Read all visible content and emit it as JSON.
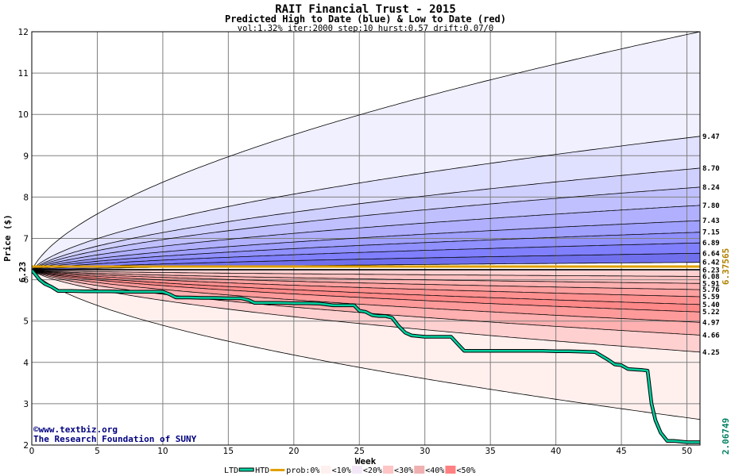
{
  "chart_data": {
    "type": "area",
    "title": "RAIT Financial Trust - 2015",
    "subtitle": "Predicted High to Date (blue) &  Low to Date (red)",
    "params": "vol:1.32% iter:2000 step:10 hurst:0.57 drift:0.07/0",
    "xlabel": "Week",
    "ylabel": "Price ($)",
    "xlim": [
      0,
      51
    ],
    "ylim": [
      2,
      12
    ],
    "x_ticks": [
      0,
      5,
      10,
      15,
      20,
      25,
      30,
      35,
      40,
      45,
      50
    ],
    "y_ticks": [
      2,
      3,
      4,
      5,
      6,
      7,
      8,
      9,
      10,
      11,
      12
    ],
    "grid": true,
    "start_price": 6.23,
    "start_label": "6.23",
    "reference_price": 6.37565,
    "reference_label": "6.37565",
    "last_price_label": "2.06749",
    "band_curves": [
      {
        "label": "",
        "end": 12.0,
        "k": 0.2505,
        "base": 6.23
      },
      {
        "label": "9.47",
        "end": 9.47,
        "k": 0.2505,
        "base": 6.23
      },
      {
        "label": "8.70",
        "end": 8.7,
        "k": 0.2505,
        "base": 6.23
      },
      {
        "label": "8.24",
        "end": 8.24,
        "k": 0.2505,
        "base": 6.23
      },
      {
        "label": "7.80",
        "end": 7.8,
        "k": 0.2505,
        "base": 6.23
      },
      {
        "label": "7.43",
        "end": 7.43,
        "k": 0.2505,
        "base": 6.23
      },
      {
        "label": "7.15",
        "end": 7.15,
        "k": 0.2505,
        "base": 6.23
      },
      {
        "label": "6.89",
        "end": 6.89,
        "k": 0.2505,
        "base": 6.23
      },
      {
        "label": "6.64",
        "end": 6.64,
        "k": 0.2505,
        "base": 6.23
      },
      {
        "label": "6.42",
        "end": 6.42,
        "k": 0.2505,
        "base": 6.23
      },
      {
        "label": "6.23",
        "end": 6.23,
        "k": 0.2505,
        "base": 6.23
      },
      {
        "label": "6.08",
        "end": 6.08,
        "k": 0.2505,
        "base": 6.23
      },
      {
        "label": "5.91",
        "end": 5.91,
        "k": 0.2505,
        "base": 6.23
      },
      {
        "label": "5.76",
        "end": 5.76,
        "k": 0.2505,
        "base": 6.23
      },
      {
        "label": "5.59",
        "end": 5.59,
        "k": 0.2505,
        "base": 6.23
      },
      {
        "label": "5.40",
        "end": 5.4,
        "k": 0.2505,
        "base": 6.23
      },
      {
        "label": "5.22",
        "end": 5.22,
        "k": 0.2505,
        "base": 6.23
      },
      {
        "label": "4.97",
        "end": 4.97,
        "k": 0.2505,
        "base": 6.23
      },
      {
        "label": "4.66",
        "end": 4.66,
        "k": 0.2505,
        "base": 6.23
      },
      {
        "label": "4.25",
        "end": 4.25,
        "k": 0.2505,
        "base": 6.23
      },
      {
        "label": "",
        "end": 2.62,
        "k": 0.2505,
        "base": 6.23
      }
    ],
    "band_fills": [
      "#f0f0ff",
      "#e0e0ff",
      "#d0d0ff",
      "#c0c0ff",
      "#b0b0ff",
      "#a0a0ff",
      "#9090ff",
      "#8080ff",
      "#7070ee",
      "#ffffff",
      "#ffd0d0",
      "#ffc0c0",
      "#ffb0b0",
      "#ffa0a0",
      "#ff9090",
      "#ff8888",
      "#ff9a9a",
      "#ffb0b0",
      "#ffd0d0",
      "#fff0ee"
    ],
    "series": [
      {
        "name": "LTD",
        "color": "#00d0a0",
        "x": [
          0,
          0.3,
          0.6,
          1.0,
          1.5,
          2.0,
          3.0,
          4.0,
          5.0,
          6.0,
          7.0,
          8.0,
          9.0,
          10.0,
          10.5,
          11.0,
          12.0,
          13.0,
          14.0,
          15.0,
          16.0,
          16.6,
          17.0,
          18.0,
          19.0,
          20.0,
          21.0,
          22.0,
          23.0,
          24.0,
          24.6,
          25.0,
          25.5,
          26.0,
          26.5,
          27.0,
          27.5,
          28.0,
          28.5,
          29.0,
          30.0,
          31.0,
          32.0,
          32.5,
          33.0,
          34.0,
          35.0,
          36.0,
          37.0,
          38.0,
          39.0,
          40.0,
          41.0,
          42.0,
          43.0,
          44.0,
          44.5,
          45.0,
          45.5,
          46.0,
          46.5,
          47.0,
          47.3,
          47.6,
          48.0,
          48.5,
          49.0,
          50.0,
          51.0
        ],
        "values": [
          6.23,
          6.12,
          6.0,
          5.9,
          5.83,
          5.73,
          5.73,
          5.72,
          5.72,
          5.72,
          5.71,
          5.71,
          5.71,
          5.71,
          5.65,
          5.57,
          5.57,
          5.56,
          5.56,
          5.55,
          5.55,
          5.5,
          5.44,
          5.44,
          5.44,
          5.43,
          5.43,
          5.42,
          5.38,
          5.38,
          5.38,
          5.25,
          5.22,
          5.14,
          5.12,
          5.12,
          5.08,
          4.88,
          4.72,
          4.65,
          4.62,
          4.62,
          4.62,
          4.45,
          4.28,
          4.28,
          4.28,
          4.28,
          4.28,
          4.28,
          4.28,
          4.27,
          4.27,
          4.26,
          4.25,
          4.06,
          3.95,
          3.93,
          3.84,
          3.83,
          3.82,
          3.8,
          3.0,
          2.6,
          2.3,
          2.1,
          2.1,
          2.07,
          2.07
        ]
      },
      {
        "name": "HTD",
        "color": "#000000",
        "x": [
          0,
          51
        ],
        "values": [
          6.23,
          6.23
        ]
      },
      {
        "name": "prob:0%",
        "color": "#e0a000",
        "x": [
          0,
          51
        ],
        "values": [
          6.37565,
          6.37565
        ]
      }
    ],
    "legend": [
      "LTD",
      "HTD",
      "prob:0%",
      "<10%",
      "<20%",
      "<30%",
      "<40%",
      "<50%"
    ],
    "legend_placement": "bottom",
    "legend_swatches": [
      "#fff0f0",
      "#f4e8f8",
      "#ffc4c4",
      "#f0b0b0",
      "#ff8080"
    ],
    "credit_lines": [
      "©www.textbiz.org",
      "The Research Foundation of SUNY"
    ]
  }
}
